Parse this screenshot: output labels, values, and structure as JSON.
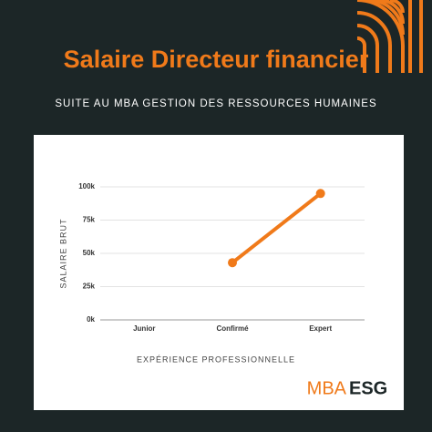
{
  "chart_data": {
    "type": "line",
    "title": "Salaire Directeur financier",
    "subtitle": "SUITE AU MBA GESTION DES RESSOURCES HUMAINES",
    "x_label": "EXPÉRIENCE PROFESSIONNELLE",
    "y_label": "SALAIRE BRUT",
    "categories": [
      "Junior",
      "Confirmé",
      "Expert"
    ],
    "series": [
      {
        "name": "Salaire brut",
        "color": "#f07a1a",
        "values": [
          null,
          43000,
          95000
        ]
      }
    ],
    "ylim": [
      0,
      100000
    ],
    "yticks": [
      {
        "value": 0,
        "label": "0k"
      },
      {
        "value": 25000,
        "label": "25k"
      },
      {
        "value": 50000,
        "label": "50k"
      },
      {
        "value": 75000,
        "label": "75k"
      },
      {
        "value": 100000,
        "label": "100k"
      }
    ],
    "grid": true
  },
  "logo": [
    "MBA",
    "ESG"
  ]
}
